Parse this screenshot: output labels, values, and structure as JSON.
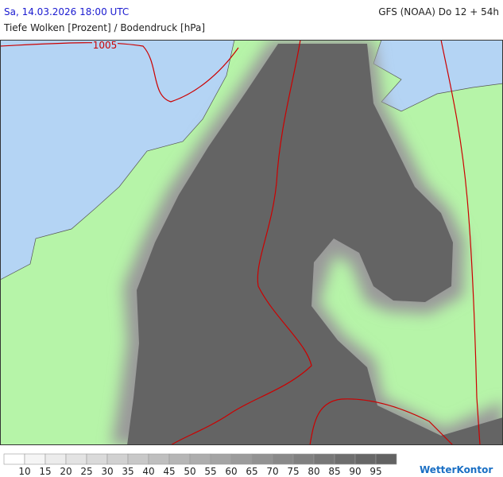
{
  "header": {
    "date": "Sa, 14.03.2026 18:00 UTC",
    "model": "GFS (NOAA) Do 12 + 54h",
    "subtitle": "Tiefe Wolken [Prozent] / Bodendruck [hPa]"
  },
  "map": {
    "isobar_label": "1005"
  },
  "legend": {
    "labels": [
      "10",
      "15",
      "20",
      "25",
      "30",
      "35",
      "40",
      "45",
      "50",
      "55",
      "60",
      "65",
      "70",
      "75",
      "80",
      "85",
      "90",
      "95"
    ],
    "colors": [
      "#ffffff",
      "#f5f5f5",
      "#ececec",
      "#e3e3e3",
      "#dadada",
      "#d1d1d1",
      "#c8c8c8",
      "#bfbfbf",
      "#b6b6b6",
      "#adadad",
      "#a4a4a4",
      "#9b9b9b",
      "#929292",
      "#898989",
      "#808080",
      "#777777",
      "#6e6e6e",
      "#676767",
      "#626262"
    ]
  },
  "logo": "WetterKontor"
}
